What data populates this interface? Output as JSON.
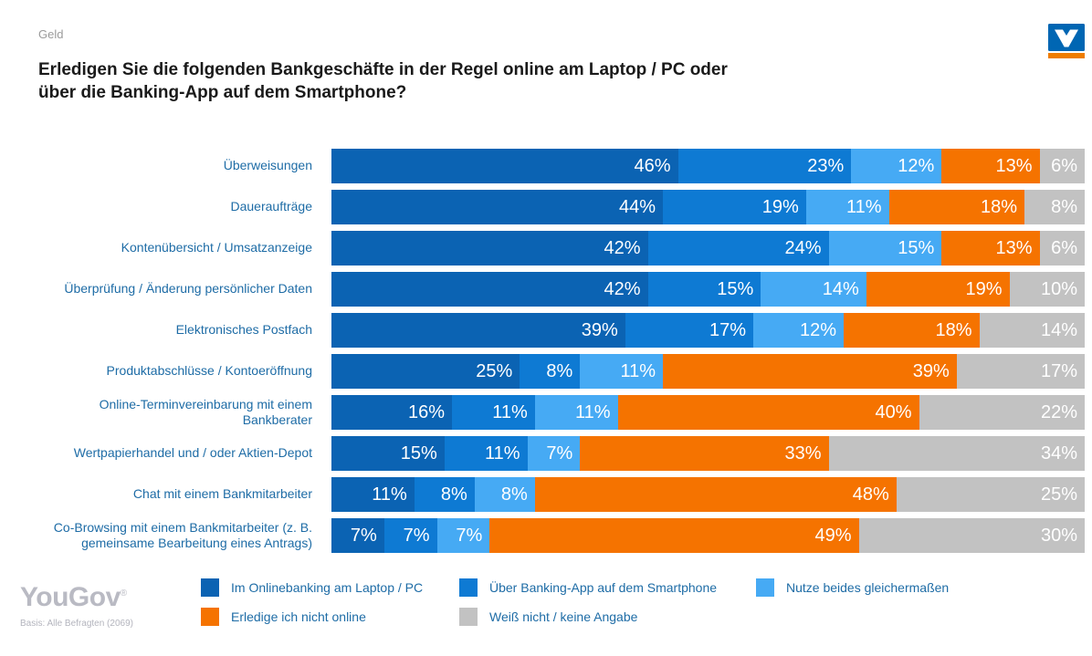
{
  "header": {
    "eyebrow": "Geld",
    "title": "Erledigen Sie die folgenden Bankgeschäfte in der Regel online am Laptop / PC oder über die Banking-App auf dem Smartphone?"
  },
  "brand_logo": {
    "name": "volksbank-vr-logo",
    "blue": "#0066b3",
    "orange": "#ef7d00"
  },
  "footer": {
    "logo_text": "YouGov",
    "logo_mark": "®",
    "basis": "Basis: Alle Befragten (2069)"
  },
  "colors": {
    "label_text_blue": "#1e6ca6",
    "eyebrow_gray": "#9b9b9b",
    "title_black": "#1a1a1a",
    "value_label_white": "#ffffff"
  },
  "chart_data": {
    "type": "bar",
    "orientation": "horizontal",
    "stacked": true,
    "unit": "%",
    "xlim": [
      0,
      100
    ],
    "grid": false,
    "legend_position": "bottom",
    "value_labels": "inside-right",
    "categories": [
      "Überweisungen",
      "Daueraufträge",
      "Kontenübersicht / Umsatzanzeige",
      "Überprüfung / Änderung persönlicher Daten",
      "Elektronisches Postfach",
      "Produktabschlüsse / Kontoeröffnung",
      "Online-Terminvereinbarung mit einem Bankberater",
      "Wertpapierhandel und / oder Aktien-Depot",
      "Chat mit einem Bankmitarbeiter",
      "Co-Browsing mit einem Bankmitarbeiter (z. B. gemeinsame Bearbeitung eines Antrags)"
    ],
    "series": [
      {
        "name": "Im Onlinebanking am Laptop / PC",
        "color": "#0b63b3",
        "values": [
          46,
          44,
          42,
          42,
          39,
          25,
          16,
          15,
          11,
          7
        ]
      },
      {
        "name": "Über Banking-App auf dem Smartphone",
        "color": "#0e7ad3",
        "values": [
          23,
          19,
          24,
          15,
          17,
          8,
          11,
          11,
          8,
          7
        ]
      },
      {
        "name": "Nutze beides gleichermaßen",
        "color": "#46aaf4",
        "values": [
          12,
          11,
          15,
          14,
          12,
          11,
          11,
          7,
          8,
          7
        ]
      },
      {
        "name": "Erledige ich nicht online",
        "color": "#f57300",
        "values": [
          13,
          18,
          13,
          19,
          18,
          39,
          40,
          33,
          48,
          49
        ]
      },
      {
        "name": "Weiß nicht / keine Angabe",
        "color": "#c2c2c2",
        "values": [
          6,
          8,
          6,
          10,
          14,
          17,
          22,
          34,
          25,
          30
        ]
      }
    ]
  }
}
